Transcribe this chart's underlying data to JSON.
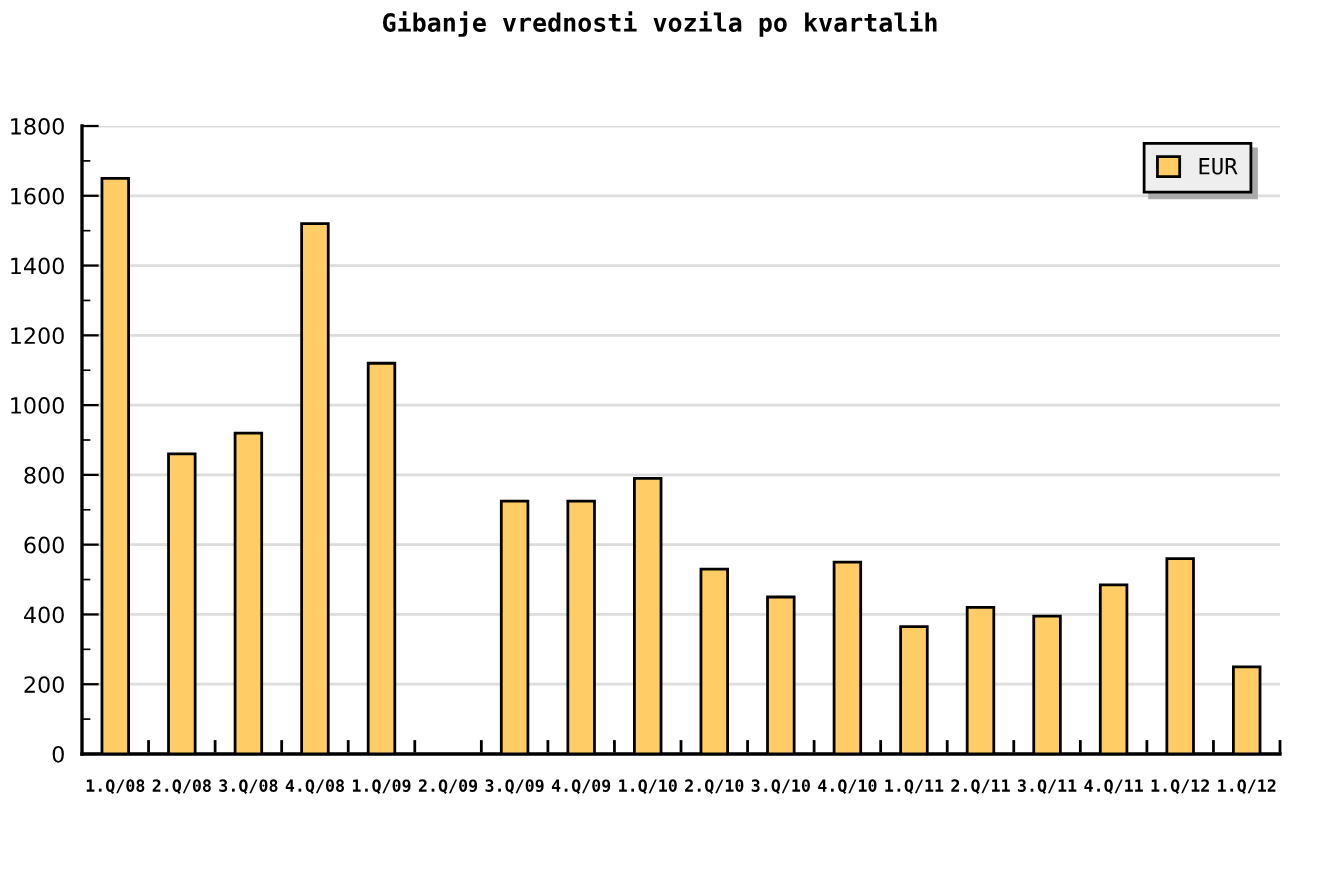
{
  "chart_data": {
    "type": "bar",
    "title": "Gibanje vrednosti vozila po kvartalih",
    "categories": [
      "1.Q/08",
      "2.Q/08",
      "3.Q/08",
      "4.Q/08",
      "1.Q/09",
      "2.Q/09",
      "3.Q/09",
      "4.Q/09",
      "1.Q/10",
      "2.Q/10",
      "3.Q/10",
      "4.Q/10",
      "1.Q/11",
      "2.Q/11",
      "3.Q/11",
      "4.Q/11",
      "1.Q/12",
      "1.Q/12"
    ],
    "series": [
      {
        "name": "EUR",
        "color": "#ffcc66",
        "values": [
          1650,
          860,
          920,
          1520,
          1120,
          null,
          725,
          725,
          790,
          530,
          450,
          550,
          365,
          420,
          395,
          485,
          560,
          250
        ]
      }
    ],
    "ylim": [
      0,
      1800
    ],
    "yticks": [
      0,
      200,
      400,
      600,
      800,
      1000,
      1200,
      1400,
      1600,
      1800
    ],
    "grid": "y",
    "legend": "top right"
  }
}
